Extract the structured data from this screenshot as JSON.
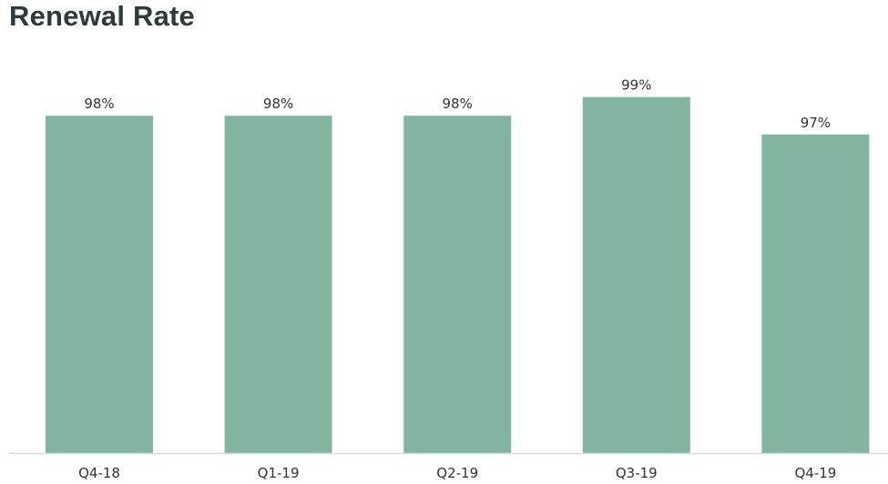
{
  "chart_data": {
    "type": "bar",
    "title": "Renewal Rate",
    "categories": [
      "Q4-18",
      "Q1-19",
      "Q2-19",
      "Q3-19",
      "Q4-19"
    ],
    "values": [
      98,
      98,
      98,
      99,
      97
    ],
    "data_labels": [
      "98%",
      "98%",
      "98%",
      "99%",
      "97%"
    ],
    "xlabel": "",
    "ylabel": "",
    "ylim": [
      80,
      100
    ],
    "grid": false,
    "legend": "none",
    "bar_color": "#82b5a0",
    "axis_color": "#d9d9d9"
  }
}
